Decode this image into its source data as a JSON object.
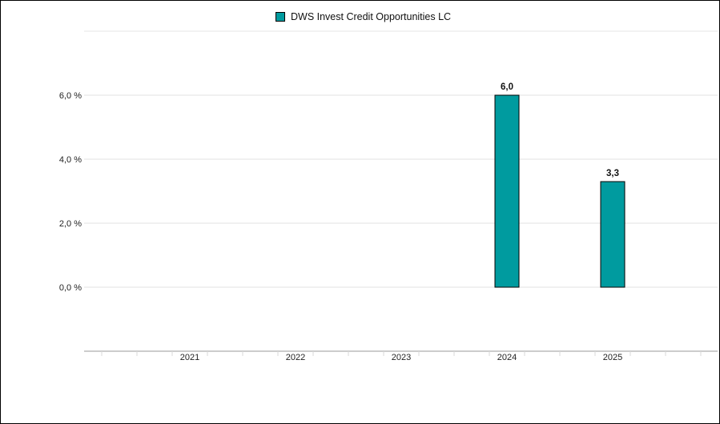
{
  "chart_data": {
    "type": "bar",
    "categories": [
      "2021",
      "2022",
      "2023",
      "2024",
      "2025"
    ],
    "series": [
      {
        "name": "DWS Invest Credit Opportunities LC",
        "values": [
          null,
          null,
          null,
          6.0,
          3.3
        ],
        "value_labels": [
          "",
          "",
          "",
          "6,0",
          "3,3"
        ],
        "color": "#009b9f"
      }
    ],
    "ylim": [
      -2.0,
      8.0
    ],
    "yticks": [
      0,
      2,
      4,
      6
    ],
    "ytick_labels": [
      "0,0 %",
      "2,0 %",
      "4,0 %",
      "6,0 %"
    ],
    "grid": true,
    "legend_position": "top-center",
    "title": "",
    "xlabel": "",
    "ylabel": ""
  }
}
